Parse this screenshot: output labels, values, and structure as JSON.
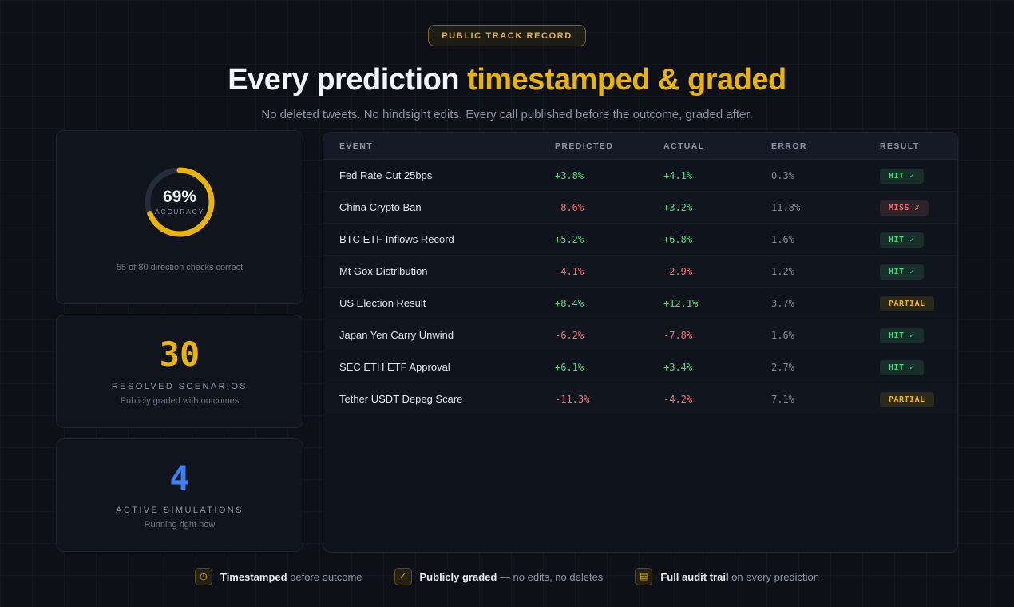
{
  "badge": "PUBLIC TRACK RECORD",
  "heading": {
    "plain": "Every prediction ",
    "highlight": "timestamped & graded"
  },
  "subtitle": "No deleted tweets. No hindsight edits. Every call published before the outcome, graded after.",
  "stats": {
    "accuracy": {
      "value": 69,
      "value_label": "69%",
      "label": "ACCURACY",
      "caption": "55 of 80 direction checks correct"
    },
    "resolved": {
      "value": "30",
      "label": "RESOLVED SCENARIOS",
      "caption": "Publicly graded with outcomes"
    },
    "active": {
      "value": "4",
      "label": "ACTIVE SIMULATIONS",
      "caption": "Running right now"
    }
  },
  "table": {
    "headers": [
      "EVENT",
      "PREDICTED",
      "ACTUAL",
      "ERROR",
      "RESULT"
    ],
    "rows": [
      {
        "event": "Fed Rate Cut 25bps",
        "predicted": "+3.8%",
        "actual": "+4.1%",
        "error": "0.3%",
        "result": "HIT ✓",
        "result_type": "hit"
      },
      {
        "event": "China Crypto Ban",
        "predicted": "-8.6%",
        "actual": "+3.2%",
        "error": "11.8%",
        "result": "MISS ✗",
        "result_type": "miss"
      },
      {
        "event": "BTC ETF Inflows Record",
        "predicted": "+5.2%",
        "actual": "+6.8%",
        "error": "1.6%",
        "result": "HIT ✓",
        "result_type": "hit"
      },
      {
        "event": "Mt Gox Distribution",
        "predicted": "-4.1%",
        "actual": "-2.9%",
        "error": "1.2%",
        "result": "HIT ✓",
        "result_type": "hit"
      },
      {
        "event": "US Election Result",
        "predicted": "+8.4%",
        "actual": "+12.1%",
        "error": "3.7%",
        "result": "PARTIAL",
        "result_type": "partial"
      },
      {
        "event": "Japan Yen Carry Unwind",
        "predicted": "-6.2%",
        "actual": "-7.8%",
        "error": "1.6%",
        "result": "HIT ✓",
        "result_type": "hit"
      },
      {
        "event": "SEC ETH ETF Approval",
        "predicted": "+6.1%",
        "actual": "+3.4%",
        "error": "2.7%",
        "result": "HIT ✓",
        "result_type": "hit"
      },
      {
        "event": "Tether USDT Depeg Scare",
        "predicted": "-11.3%",
        "actual": "-4.2%",
        "error": "7.1%",
        "result": "PARTIAL",
        "result_type": "partial"
      }
    ]
  },
  "footer": [
    {
      "glyph": "◷",
      "bold": "Timestamped",
      "rest": " before outcome"
    },
    {
      "glyph": "✓",
      "bold": "Publicly graded",
      "rest": " — no edits, no deletes"
    },
    {
      "glyph": "▤",
      "bold": "Full audit trail",
      "rest": " on every prediction"
    }
  ],
  "colors": {
    "amber": "#eab308",
    "green": "#4ade80",
    "red": "#f87171",
    "blue": "#3b82f6"
  }
}
